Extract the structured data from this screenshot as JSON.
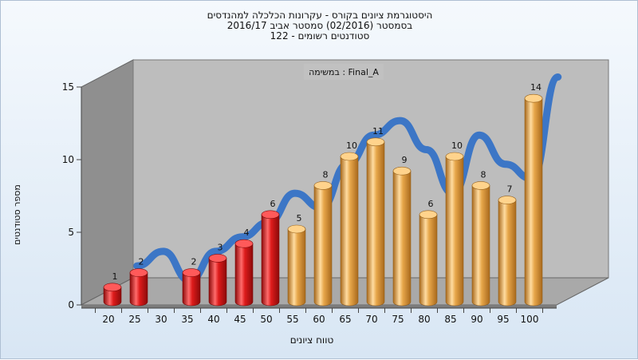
{
  "title": {
    "line1": "היסטוגרמת ציונים בקורס - עקרונות הכלכלה למהנדסים",
    "line2": "בסמסטר  (02/2016)  סמסטר אביב 2016/17",
    "line3": "סטודנטים רשומים - 122"
  },
  "exam_label": "במשימה : Final_A",
  "chart_data": {
    "type": "bar",
    "style": "3d-cylinder",
    "xlabel": "טווח ציונים",
    "ylabel": "מספר סטודנטים",
    "categories": [
      "20",
      "25",
      "30",
      "35",
      "40",
      "45",
      "50",
      "55",
      "60",
      "65",
      "70",
      "75",
      "80",
      "85",
      "90",
      "95",
      "100"
    ],
    "values": [
      1,
      2,
      0,
      2,
      3,
      4,
      6,
      5,
      8,
      10,
      11,
      9,
      6,
      10,
      8,
      7,
      14
    ],
    "yticks": [
      0,
      5,
      10,
      15
    ],
    "ylim": [
      0,
      15
    ],
    "grid": false,
    "colors": {
      "fail": "#dd1b1b",
      "pass": "#e7a64a",
      "trend": "#3572c6",
      "trend_low": "#6e6e6e",
      "back_wall": "#bdbdbd",
      "side_wall": "#8f8f8f",
      "floor": "#a9a9a9"
    },
    "pass_threshold": 55
  }
}
